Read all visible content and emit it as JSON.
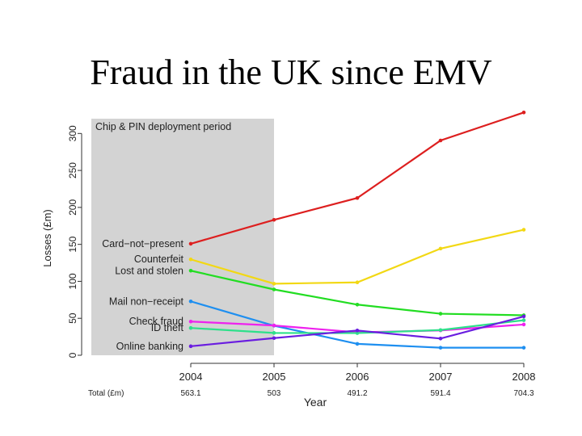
{
  "slide": {
    "title": "Fraud in the UK since EMV"
  },
  "chart_data": {
    "type": "line",
    "title": "",
    "xlabel": "Year",
    "ylabel": "Losses (£m)",
    "x": [
      2004,
      2005,
      2006,
      2007,
      2008
    ],
    "xticks": [
      "2004",
      "2005",
      "2006",
      "2007",
      "2008"
    ],
    "yticks": [
      "0",
      "50",
      "100",
      "150",
      "200",
      "250",
      "300"
    ],
    "ylim": [
      0,
      320
    ],
    "grid": false,
    "shaded_period": {
      "label": "Chip & PIN deployment period",
      "from": 2004,
      "to": 2005
    },
    "totals": {
      "label": "Total (£m)",
      "values": [
        "563.1",
        "503",
        "491.2",
        "591.4",
        "704.3"
      ]
    },
    "series": [
      {
        "name": "Card−not−present",
        "color": "#dd1f1f",
        "values": [
          150.8,
          183.2,
          212.7,
          290.5,
          328.4
        ]
      },
      {
        "name": "Counterfeit",
        "color": "#f2d814",
        "values": [
          129.7,
          96.8,
          98.6,
          144.3,
          169.8
        ]
      },
      {
        "name": "Lost and stolen",
        "color": "#22dd22",
        "values": [
          114.4,
          89.0,
          68.5,
          56.2,
          54.1
        ]
      },
      {
        "name": "Mail non−receipt",
        "color": "#1e8ff0",
        "values": [
          72.9,
          40.0,
          15.4,
          10.2,
          10.2
        ]
      },
      {
        "name": "Check fraud",
        "color": "#ee22ee",
        "values": [
          45.6,
          40.3,
          31.0,
          33.6,
          41.6
        ]
      },
      {
        "name": "ID theft",
        "color": "#2ee08a",
        "values": [
          36.9,
          30.2,
          30.0,
          34.1,
          47.4
        ]
      },
      {
        "name": "Online banking",
        "color": "#6a1de0",
        "values": [
          12.2,
          23.2,
          33.5,
          22.6,
          52.5
        ]
      }
    ]
  }
}
